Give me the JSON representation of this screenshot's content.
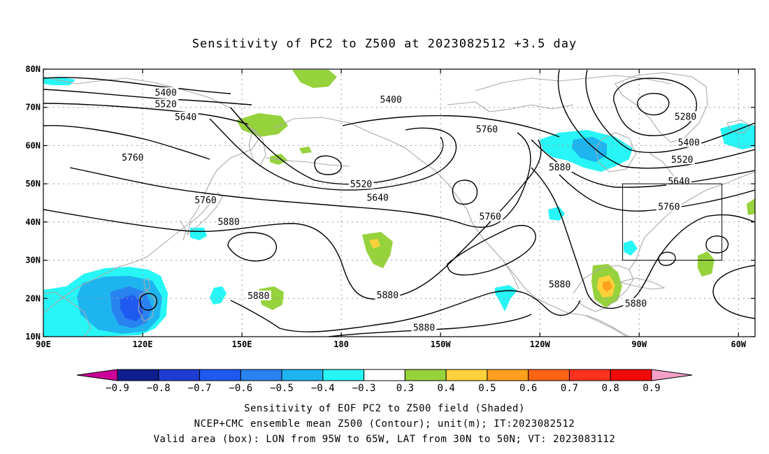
{
  "title": "Sensitivity of PC2 to Z500 at 2023082512 +3.5 day",
  "colors": {
    "coast": "#aaaaaa",
    "contour": "#000000",
    "grid": "#9a9a9a"
  },
  "map": {
    "lon_range": [
      90,
      305
    ],
    "lat_range": [
      10,
      80
    ],
    "lat_ticks": [
      {
        "value": 80,
        "label": "80N"
      },
      {
        "value": 70,
        "label": "70N"
      },
      {
        "value": 60,
        "label": "60N"
      },
      {
        "value": 50,
        "label": "50N"
      },
      {
        "value": 40,
        "label": "40N"
      },
      {
        "value": 30,
        "label": "30N"
      },
      {
        "value": 20,
        "label": "20N"
      },
      {
        "value": 10,
        "label": "10N"
      }
    ],
    "lon_ticks": [
      {
        "value": 90,
        "label": "90E"
      },
      {
        "value": 120,
        "label": "120E"
      },
      {
        "value": 150,
        "label": "150E"
      },
      {
        "value": 180,
        "label": "180"
      },
      {
        "value": 210,
        "label": "150W"
      },
      {
        "value": 240,
        "label": "120W"
      },
      {
        "value": 270,
        "label": "90W"
      },
      {
        "value": 300,
        "label": "60W"
      }
    ],
    "valid_box": {
      "lon": [
        265,
        295
      ],
      "lat": [
        30,
        50
      ]
    },
    "contour_labels": [
      {
        "text": "5400",
        "lon": 127,
        "lat": 73.8
      },
      {
        "text": "5520",
        "lon": 127,
        "lat": 70.8
      },
      {
        "text": "5640",
        "lon": 133,
        "lat": 67.4
      },
      {
        "text": "5760",
        "lon": 117,
        "lat": 56.8
      },
      {
        "text": "5760",
        "lon": 139,
        "lat": 45.6
      },
      {
        "text": "5880",
        "lon": 146,
        "lat": 40.0
      },
      {
        "text": "5880",
        "lon": 155,
        "lat": 20.6
      },
      {
        "text": "5400",
        "lon": 195,
        "lat": 72.0
      },
      {
        "text": "5520",
        "lon": 186,
        "lat": 49.8
      },
      {
        "text": "5640",
        "lon": 191,
        "lat": 46.3
      },
      {
        "text": "5760",
        "lon": 224,
        "lat": 64.2
      },
      {
        "text": "5880",
        "lon": 246,
        "lat": 54.2
      },
      {
        "text": "5760",
        "lon": 225,
        "lat": 41.3
      },
      {
        "text": "5880",
        "lon": 194,
        "lat": 20.8
      },
      {
        "text": "5880",
        "lon": 246,
        "lat": 23.6
      },
      {
        "text": "5880",
        "lon": 205,
        "lat": 12.3
      },
      {
        "text": "5880",
        "lon": 269,
        "lat": 18.6
      },
      {
        "text": "5280",
        "lon": 284,
        "lat": 67.5
      },
      {
        "text": "5400",
        "lon": 285,
        "lat": 60.7
      },
      {
        "text": "5520",
        "lon": 283,
        "lat": 56.2
      },
      {
        "text": "5640",
        "lon": 282,
        "lat": 50.6
      },
      {
        "text": "5760",
        "lon": 279,
        "lat": 43.9
      }
    ]
  },
  "colorbar": {
    "labels": [
      "-0.9",
      "-0.8",
      "-0.7",
      "-0.6",
      "-0.5",
      "-0.4",
      "-0.3",
      "0.3",
      "0.4",
      "0.5",
      "0.6",
      "0.7",
      "0.8",
      "0.9"
    ],
    "colors": [
      "#cc0099",
      "#0f1e8c",
      "#1e3cd2",
      "#1e5af0",
      "#2882f0",
      "#1eb4f0",
      "#28f5f5",
      "#ffffff",
      "#96d23c",
      "#ffd23c",
      "#ffa01e",
      "#ff6414",
      "#ff321e",
      "#f00a0a",
      "#f5a0c8"
    ]
  },
  "captions": [
    "Sensitivity of EOF PC2 to Z500 field (Shaded)",
    "NCEP+CMC ensemble mean Z500 (Contour); unit(m); IT:2023082512",
    "Valid area (box): LON from 95W to 65W, LAT from 30N to 50N; VT: 2023083112"
  ]
}
